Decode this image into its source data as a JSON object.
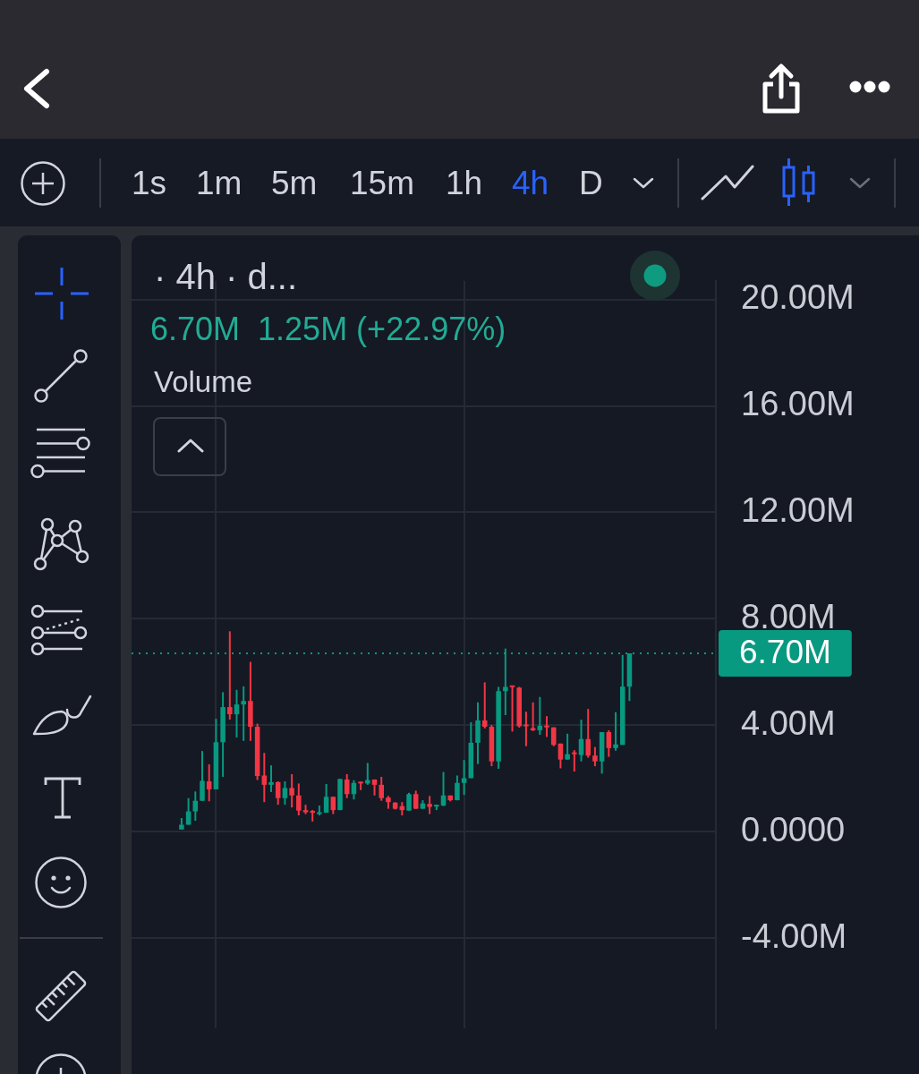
{
  "chart_data": {
    "type": "candlestick",
    "categories": [
      null,
      null,
      null,
      null,
      null,
      null,
      null,
      null,
      null,
      null,
      null,
      null,
      null,
      null,
      null,
      null,
      null,
      null,
      null,
      null,
      null,
      null,
      null,
      null,
      null,
      null,
      null,
      null,
      null,
      null,
      null,
      null,
      null,
      null,
      null,
      null,
      null,
      null,
      null,
      null,
      null,
      null,
      null,
      null,
      null,
      null,
      null,
      null,
      null,
      null,
      null,
      null,
      null,
      null,
      null,
      null,
      null,
      null,
      null,
      null,
      null,
      null,
      null,
      null,
      null,
      null
    ],
    "ohlc": [
      [
        0.08,
        0.51,
        0.08,
        0.26
      ],
      [
        0.26,
        1.26,
        0.26,
        0.76
      ],
      [
        0.76,
        1.51,
        0.41,
        1.16
      ],
      [
        1.16,
        3.03,
        1.16,
        1.91
      ],
      [
        1.89,
        2.53,
        1.14,
        1.59
      ],
      [
        1.59,
        4.24,
        1.59,
        3.36
      ],
      [
        3.36,
        5.24,
        2.06,
        4.68
      ],
      [
        4.68,
        7.53,
        4.21,
        4.41
      ],
      [
        4.41,
        5.33,
        3.54,
        4.78
      ],
      [
        4.78,
        5.46,
        3.41,
        4.91
      ],
      [
        4.91,
        6.38,
        3.41,
        3.94
      ],
      [
        3.94,
        4.06,
        1.94,
        2.09
      ],
      [
        2.11,
        2.96,
        1.11,
        1.76
      ],
      [
        1.76,
        2.49,
        1.49,
        1.86
      ],
      [
        1.86,
        1.89,
        1.01,
        1.26
      ],
      [
        1.26,
        1.89,
        1.01,
        1.64
      ],
      [
        1.64,
        2.16,
        0.91,
        1.36
      ],
      [
        1.36,
        1.81,
        0.61,
        0.79
      ],
      [
        0.81,
        1.01,
        0.66,
        0.73
      ],
      [
        0.76,
        0.81,
        0.38,
        0.71
      ],
      [
        0.66,
        0.98,
        0.61,
        0.73
      ],
      [
        0.71,
        1.79,
        0.71,
        1.31
      ],
      [
        1.31,
        1.31,
        0.66,
        0.81
      ],
      [
        0.81,
        1.98,
        0.81,
        1.98
      ],
      [
        1.96,
        2.16,
        1.26,
        1.41
      ],
      [
        1.41,
        1.93,
        1.21,
        1.83
      ],
      [
        1.86,
        1.88,
        1.56,
        1.81
      ],
      [
        1.81,
        2.58,
        1.76,
        1.94
      ],
      [
        1.96,
        1.96,
        1.36,
        1.76
      ],
      [
        1.76,
        2.06,
        1.16,
        1.26
      ],
      [
        1.28,
        1.34,
        0.86,
        1.11
      ],
      [
        1.09,
        1.11,
        0.83,
        0.86
      ],
      [
        0.96,
        1.11,
        0.61,
        0.81
      ],
      [
        0.79,
        1.46,
        0.79,
        1.41
      ],
      [
        1.41,
        1.54,
        0.86,
        0.86
      ],
      [
        0.86,
        1.18,
        0.86,
        1.06
      ],
      [
        1.04,
        1.34,
        0.66,
        0.93
      ],
      [
        0.94,
        1.01,
        0.81,
        1.01
      ],
      [
        0.98,
        2.24,
        0.96,
        1.36
      ],
      [
        1.36,
        1.36,
        1.14,
        1.18
      ],
      [
        1.18,
        2.11,
        1.18,
        1.83
      ],
      [
        1.83,
        2.69,
        1.38,
        2.01
      ],
      [
        2.01,
        4.11,
        2.01,
        3.34
      ],
      [
        3.34,
        4.86,
        2.54,
        4.18
      ],
      [
        4.18,
        5.61,
        3.88,
        3.94
      ],
      [
        3.94,
        4.01,
        2.46,
        2.64
      ],
      [
        2.64,
        5.44,
        2.36,
        5.28
      ],
      [
        5.28,
        6.88,
        4.38,
        5.44
      ],
      [
        5.48,
        5.48,
        3.76,
        5.43
      ],
      [
        5.41,
        5.44,
        3.91,
        3.96
      ],
      [
        4.01,
        4.51,
        3.21,
        3.96
      ],
      [
        3.89,
        4.86,
        3.78,
        3.81
      ],
      [
        3.81,
        5.06,
        3.64,
        3.98
      ],
      [
        3.98,
        4.34,
        3.56,
        3.92
      ],
      [
        3.92,
        3.92,
        3.21,
        3.26
      ],
      [
        3.31,
        3.31,
        2.38,
        2.71
      ],
      [
        2.71,
        3.68,
        2.71,
        2.91
      ],
      [
        2.96,
        3.06,
        2.26,
        2.91
      ],
      [
        2.88,
        4.21,
        2.64,
        3.48
      ],
      [
        3.48,
        4.61,
        2.78,
        2.86
      ],
      [
        2.86,
        3.18,
        2.46,
        2.64
      ],
      [
        2.64,
        3.74,
        2.18,
        3.74
      ],
      [
        3.74,
        3.81,
        2.81,
        3.14
      ],
      [
        3.14,
        4.49,
        3.04,
        3.28
      ],
      [
        3.26,
        6.64,
        3.26,
        5.45
      ],
      [
        5.45,
        6.7,
        4.91,
        6.7
      ]
    ],
    "colors": [
      "#089981",
      "#089981",
      "#089981",
      "#089981",
      "#f23645",
      "#089981",
      "#089981",
      "#f23645",
      "#089981",
      "#089981",
      "#f23645",
      "#f23645",
      "#f23645",
      "#089981",
      "#f23645",
      "#089981",
      "#f23645",
      "#f23645",
      "#f23645",
      "#f23645",
      "#089981",
      "#089981",
      "#f23645",
      "#089981",
      "#f23645",
      "#089981",
      "#f23645",
      "#089981",
      "#f23645",
      "#f23645",
      "#f23645",
      "#f23645",
      "#f23645",
      "#089981",
      "#f23645",
      "#089981",
      "#f23645",
      "#089981",
      "#089981",
      "#f23645",
      "#089981",
      "#089981",
      "#089981",
      "#089981",
      "#f23645",
      "#f23645",
      "#089981",
      "#089981",
      "#f23645",
      "#f23645",
      "#f23645",
      "#f23645",
      "#089981",
      "#f23645",
      "#f23645",
      "#f23645",
      "#089981",
      "#f23645",
      "#089981",
      "#f23645",
      "#f23645",
      "#089981",
      "#f23645",
      "#089981",
      "#089981",
      "#089981"
    ],
    "ylim": [
      -7.4,
      20.7
    ],
    "yticks": [
      {
        "value": 20,
        "label": "20.00M"
      },
      {
        "value": 16,
        "label": "16.00M"
      },
      {
        "value": 12,
        "label": "12.00M"
      },
      {
        "value": 8,
        "label": "8.00M"
      },
      {
        "value": 4,
        "label": "4.00M"
      },
      {
        "value": 0,
        "label": "0.0000"
      },
      {
        "value": -4,
        "label": "-4.00M"
      }
    ],
    "grid": true,
    "tick_labels": "y",
    "ref_lines": [
      {
        "axis": "y",
        "value": 6.7,
        "label": "6.70M",
        "color": "#089981",
        "line_style": "dotted"
      }
    ],
    "annotations": [
      "1s",
      "1m",
      "5m",
      "15m",
      "1h",
      "4h",
      "D",
      "· 4h · d...",
      "6.70M",
      "1.25M (+22.97%)",
      "Volume"
    ]
  }
}
